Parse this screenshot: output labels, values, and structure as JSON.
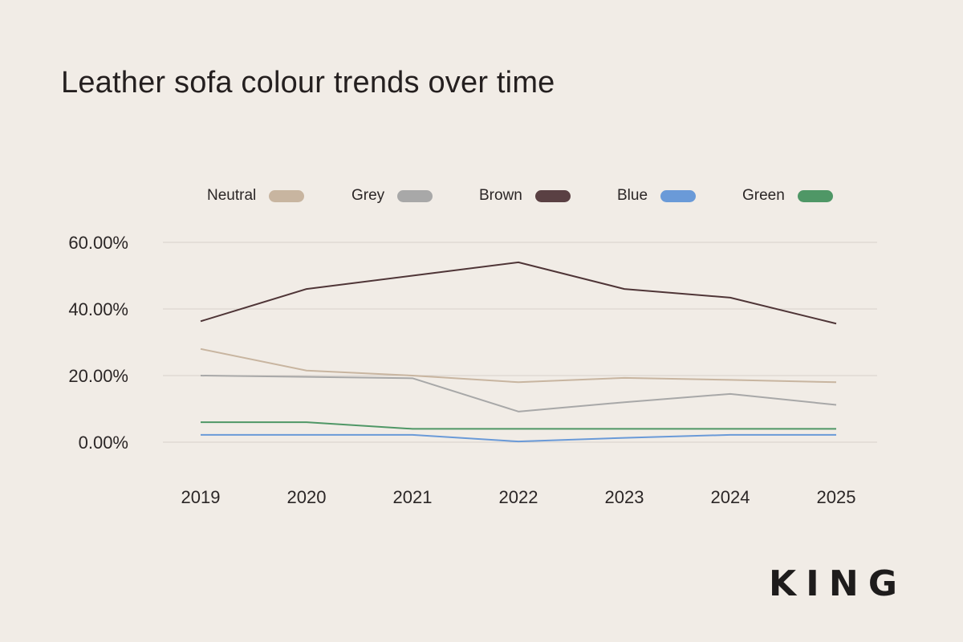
{
  "chart_data": {
    "type": "line",
    "title": "Leather sofa colour trends over time",
    "xlabel": "",
    "ylabel": "",
    "x": [
      "2019",
      "2020",
      "2021",
      "2022",
      "2023",
      "2024",
      "2025"
    ],
    "ylim": [
      0,
      60
    ],
    "yticks": [
      {
        "value": 60,
        "label": "60.00%"
      },
      {
        "value": 40,
        "label": "40.00%"
      },
      {
        "value": 20,
        "label": "20.00%"
      },
      {
        "value": 0,
        "label": "0.00%"
      }
    ],
    "grid": true,
    "legend_position": "top",
    "series": [
      {
        "name": "Neutral",
        "color": "#c8b5a0",
        "values": [
          28,
          21.5,
          20,
          18,
          19.3,
          18.7,
          18
        ]
      },
      {
        "name": "Grey",
        "color": "#a8a8a8",
        "values": [
          20,
          19.6,
          19.2,
          9.2,
          12,
          14.5,
          11.2
        ]
      },
      {
        "name": "Brown",
        "color": "#4f3537",
        "values": [
          36.3,
          46,
          50,
          54,
          46,
          43.4,
          35.6
        ]
      },
      {
        "name": "Blue",
        "color": "#6a9ad8",
        "values": [
          2.2,
          2.2,
          2.2,
          0.2,
          1.3,
          2.2,
          2.2
        ]
      },
      {
        "name": "Green",
        "color": "#4f9766",
        "values": [
          6,
          6,
          4,
          4,
          4,
          4,
          4
        ]
      }
    ]
  },
  "legend": {
    "items": [
      {
        "label": "Neutral",
        "color": "#c8b5a0"
      },
      {
        "label": "Grey",
        "color": "#a8a8a8"
      },
      {
        "label": "Brown",
        "color": "#5a4043"
      },
      {
        "label": "Blue",
        "color": "#6a9ad8"
      },
      {
        "label": "Green",
        "color": "#4f9766"
      }
    ]
  },
  "brand": {
    "logo_text": "KING"
  }
}
